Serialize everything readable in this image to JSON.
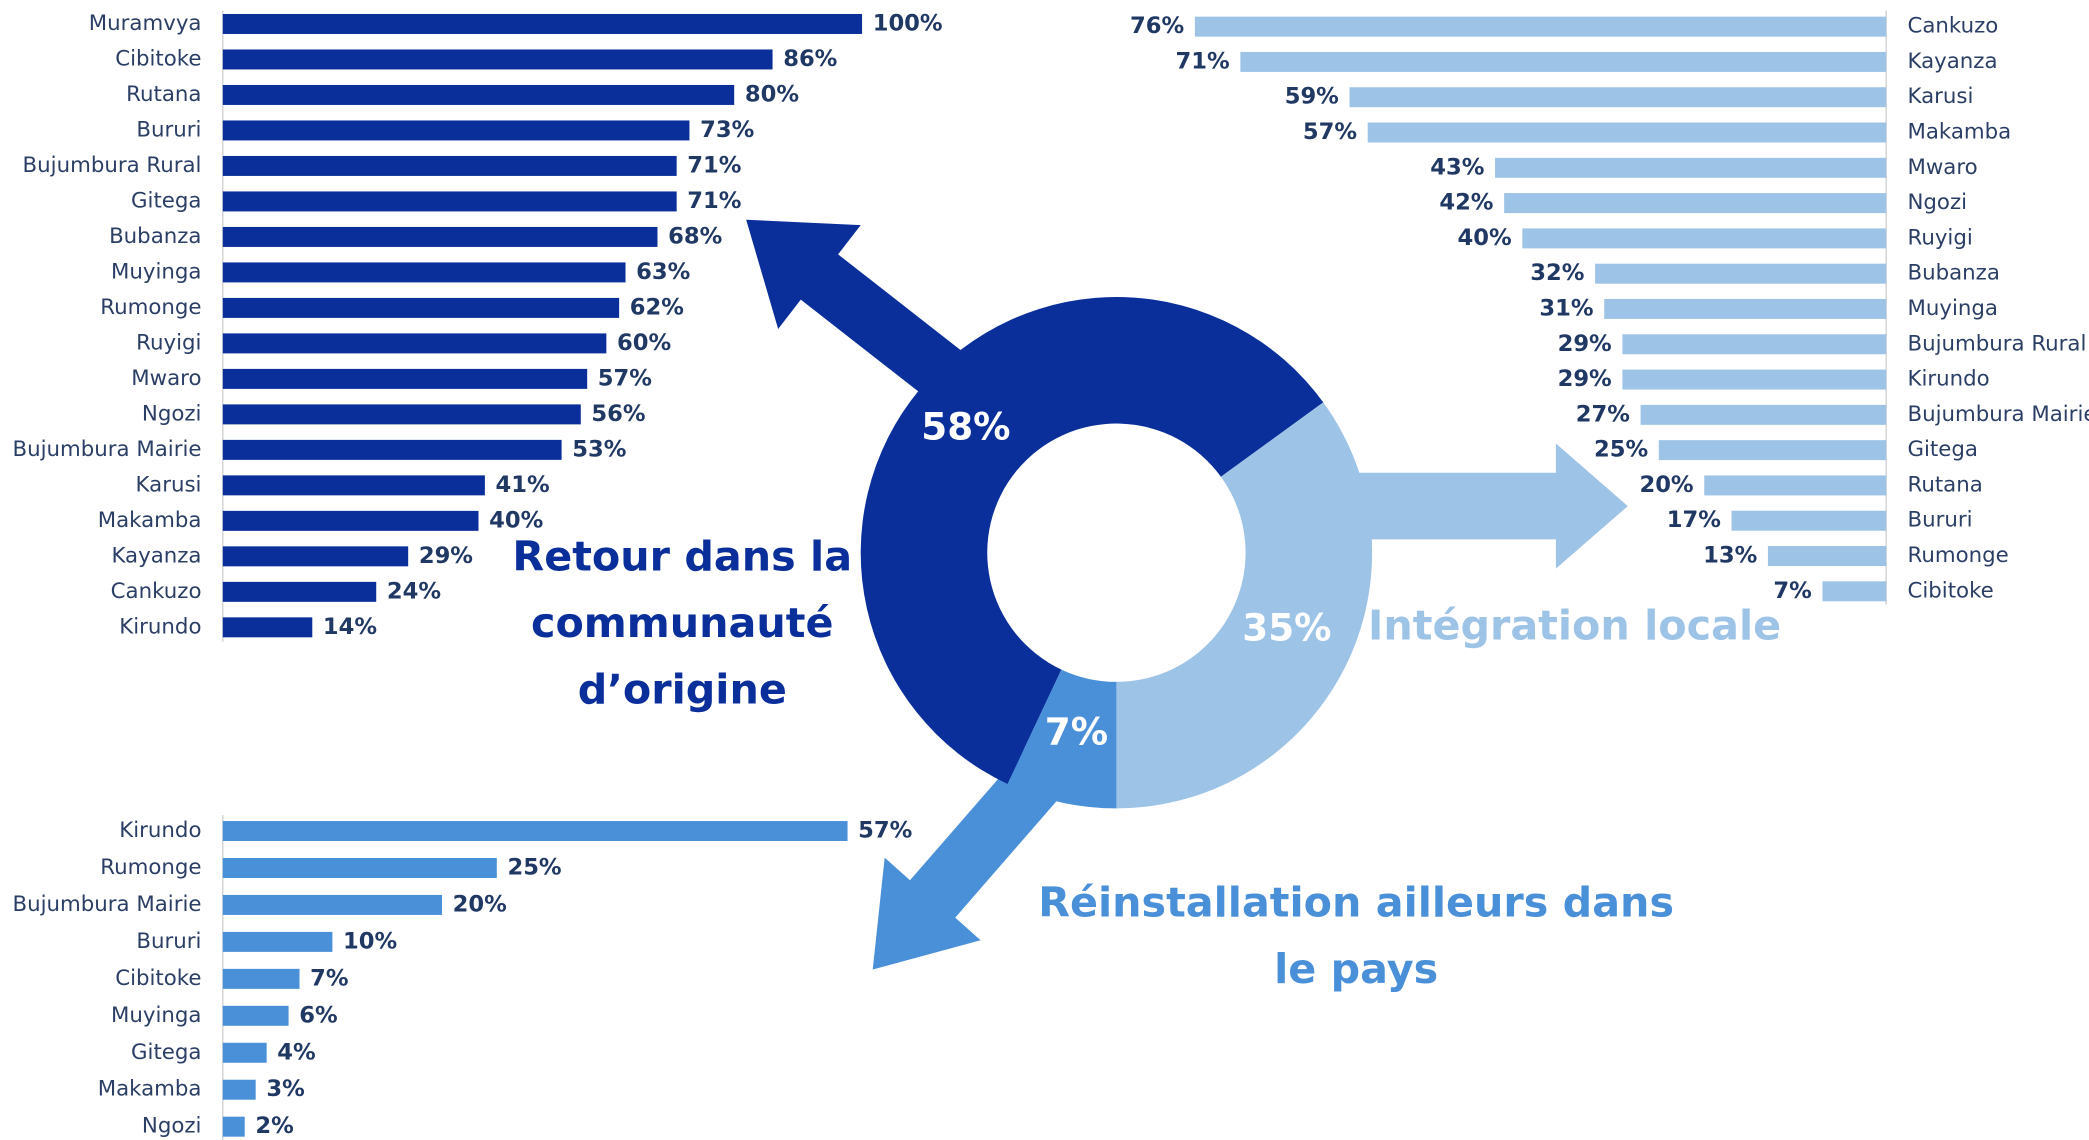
{
  "chart_data": [
    {
      "type": "pie",
      "categories": [
        "Retour dans la communauté d’origine",
        "Intégration locale",
        "Réinstallation ailleurs dans le pays"
      ],
      "values": [
        58,
        35,
        7
      ],
      "value_labels": [
        "58%",
        "35%",
        "7%"
      ],
      "colors": [
        "#0a2f9a",
        "#9dc3e6",
        "#4a90d9"
      ]
    },
    {
      "type": "bar",
      "orientation": "horizontal",
      "color": "#0a2f9a",
      "xlim": [
        0,
        100
      ],
      "categories": [
        "Muramvya",
        "Cibitoke",
        "Rutana",
        "Bururi",
        "Bujumbura Rural",
        "Gitega",
        "Bubanza",
        "Muyinga",
        "Rumonge",
        "Ruyigi",
        "Mwaro",
        "Ngozi",
        "Bujumbura Mairie",
        "Karusi",
        "Makamba",
        "Kayanza",
        "Cankuzo",
        "Kirundo"
      ],
      "values": [
        100,
        86,
        80,
        73,
        71,
        71,
        68,
        63,
        62,
        60,
        57,
        56,
        53,
        41,
        40,
        29,
        24,
        14
      ],
      "value_labels": [
        "100%",
        "86%",
        "80%",
        "73%",
        "71%",
        "71%",
        "68%",
        "63%",
        "62%",
        "60%",
        "57%",
        "56%",
        "53%",
        "41%",
        "40%",
        "29%",
        "24%",
        "14%"
      ]
    },
    {
      "type": "bar",
      "orientation": "horizontal",
      "color": "#9dc3e6",
      "xlim": [
        0,
        100
      ],
      "categories": [
        "Cankuzo",
        "Kayanza",
        "Karusi",
        "Makamba",
        "Mwaro",
        "Ngozi",
        "Ruyigi",
        "Bubanza",
        "Muyinga",
        "Bujumbura Rural",
        "Kirundo",
        "Bujumbura Mairie",
        "Gitega",
        "Rutana",
        "Bururi",
        "Rumonge",
        "Cibitoke"
      ],
      "values": [
        76,
        71,
        59,
        57,
        43,
        42,
        40,
        32,
        31,
        29,
        29,
        27,
        25,
        20,
        17,
        13,
        7
      ],
      "value_labels": [
        "76%",
        "71%",
        "59%",
        "57%",
        "43%",
        "42%",
        "40%",
        "32%",
        "31%",
        "29%",
        "29%",
        "27%",
        "25%",
        "20%",
        "17%",
        "13%",
        "7%"
      ]
    },
    {
      "type": "bar",
      "orientation": "horizontal",
      "color": "#4a90d9",
      "xlim": [
        0,
        100
      ],
      "categories": [
        "Kirundo",
        "Rumonge",
        "Bujumbura Mairie",
        "Bururi",
        "Cibitoke",
        "Muyinga",
        "Gitega",
        "Makamba",
        "Ngozi"
      ],
      "values": [
        57,
        25,
        20,
        10,
        7,
        6,
        4,
        3,
        2
      ],
      "value_labels": [
        "57%",
        "25%",
        "20%",
        "10%",
        "7%",
        "6%",
        "4%",
        "3%",
        "2%"
      ]
    }
  ]
}
